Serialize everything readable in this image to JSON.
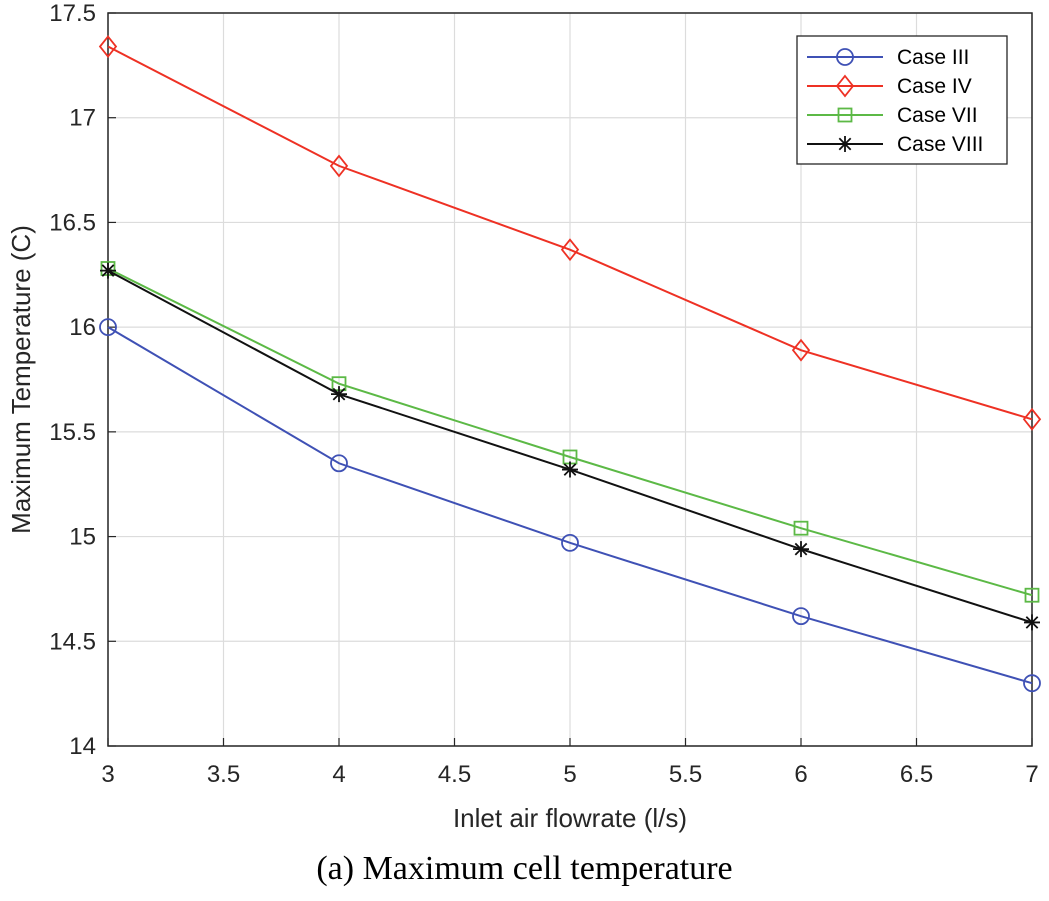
{
  "chart_data": {
    "type": "line",
    "xlabel": "Inlet air flowrate (l/s)",
    "ylabel": "Maximum Temperature (C)",
    "xlim": [
      3,
      7
    ],
    "ylim": [
      14,
      17.5
    ],
    "xticks": [
      3,
      3.5,
      4,
      4.5,
      5,
      5.5,
      6,
      6.5,
      7
    ],
    "yticks": [
      14,
      14.5,
      15,
      15.5,
      16,
      16.5,
      17,
      17.5
    ],
    "xtick_labels": [
      "3",
      "3.5",
      "4",
      "4.5",
      "5",
      "5.5",
      "6",
      "6.5",
      "7"
    ],
    "ytick_labels": [
      "14",
      "14.5",
      "15",
      "15.5",
      "16",
      "16.5",
      "17",
      "17.5"
    ],
    "grid": true,
    "legend_position": "top-right",
    "x": [
      3,
      4,
      5,
      6,
      7
    ],
    "series": [
      {
        "name": "Case III",
        "color": "#3f51b5",
        "marker": "circle",
        "values": [
          16.0,
          15.35,
          14.97,
          14.62,
          14.3
        ]
      },
      {
        "name": "Case IV",
        "color": "#ee3124",
        "marker": "diamond",
        "values": [
          17.34,
          16.77,
          16.37,
          15.89,
          15.56
        ]
      },
      {
        "name": "Case VII",
        "color": "#5cb946",
        "marker": "square",
        "values": [
          16.28,
          15.73,
          15.38,
          15.04,
          14.72
        ]
      },
      {
        "name": "Case VIII",
        "color": "#111111",
        "marker": "star",
        "values": [
          16.27,
          15.68,
          15.32,
          14.94,
          14.59
        ]
      }
    ]
  },
  "caption": "(a) Maximum cell temperature"
}
